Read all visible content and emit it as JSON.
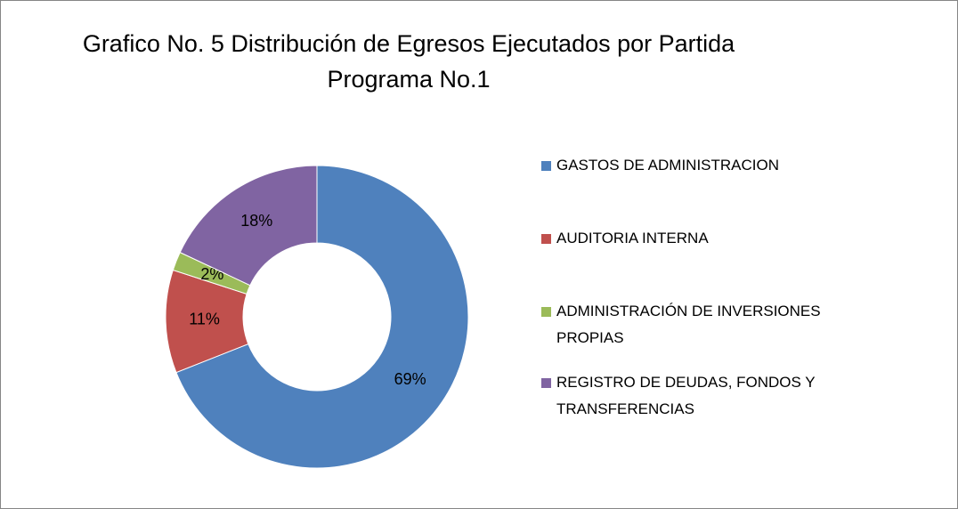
{
  "chart_data": {
    "type": "donut",
    "title": "Grafico No. 5 Distribución de Egresos Ejecutados por Partida  Programa No.1",
    "categories": [
      "GASTOS DE ADMINISTRACION",
      "AUDITORIA INTERNA",
      "ADMINISTRACIÓN DE INVERSIONES PROPIAS",
      "REGISTRO DE DEUDAS, FONDOS Y TRANSFERENCIAS"
    ],
    "values": [
      69,
      11,
      2,
      18
    ],
    "value_labels": [
      "69%",
      "11%",
      "2%",
      "18%"
    ],
    "colors": [
      "#4f81bd",
      "#c0504d",
      "#9bbb59",
      "#8064a2"
    ],
    "legend": "right"
  }
}
